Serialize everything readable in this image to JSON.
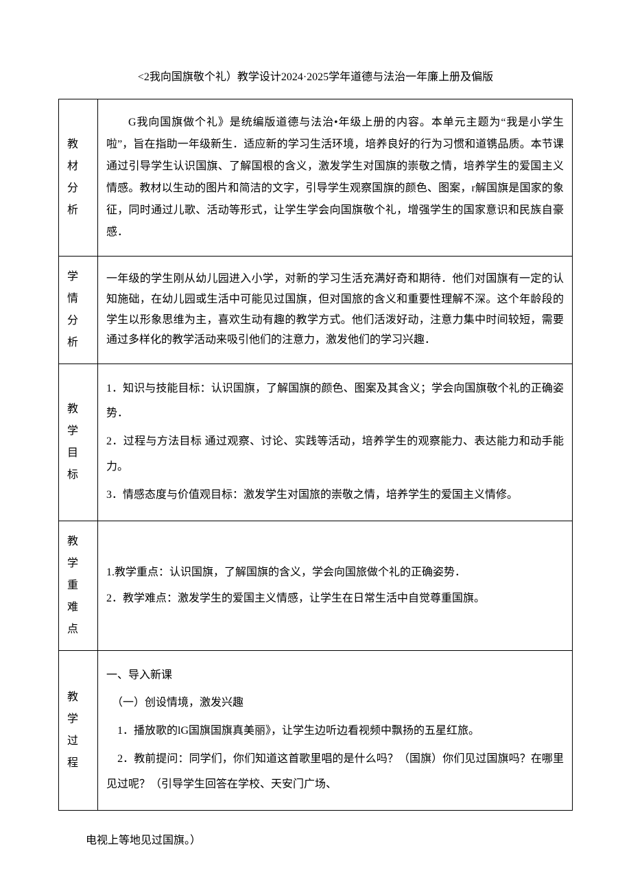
{
  "doc": {
    "title": "<2我向国旗敬个礼）教学设计2024·2025学年道德与法治一年廉上册及偏版"
  },
  "rows": {
    "r1": {
      "label_chars": [
        "教",
        "材",
        "分",
        "析"
      ],
      "content": "G我向国旗做个礼》是统编版道德与法治•年级上册的内容。本单元主题为“我是小学生啦”，旨在指助一年级新生．适应新的学习生活环境，培养良好的行为习惯和道镌品质。本节课通过引导学生认识国旗、了解国根的含义，激发学生对国旗的崇敬之情，培养学生的爱国主义情感。教材以生动的图片和简洁的文字，引导学生观察国旗的颜色、图案，r解国旗是国家的象征，同时通过儿歌、活动等形式，让学生学会向国旗敬个礼，增强学生的国家意识和民族自豪感．"
    },
    "r2": {
      "label_chars": [
        "学",
        "情",
        "分",
        "析"
      ],
      "content": "一年级的学生刚从幼儿园进入小学，对新的学习生活充满好奇和期待．他们对国旗有一定的认知施础，在幼儿园或生活中可能见过国旗，但对国旅的含义和重要性理解不深。这个年龄段的学生以形象思维为主，喜欢生动有趣的教学方式。他们活泼好动，注意力集中时间较短，需要通过多样化的教学活动来吸引他们的注意力，激发他们的学习兴趣．"
    },
    "r3": {
      "label_chars": [
        "教",
        "学",
        "目",
        "标"
      ],
      "p1": "1．知识与技能目标：认识国旗，了解国旗的颜色、图案及其含义；学会向国旗敬个礼的正确姿势．",
      "p2": "2．过程与方法目标 通过观察、讨论、实践等活动，培养学生的观察能力、表达能力和动手能力。",
      "p3": "3．情感态度与价值观目标：激发学生对国旅的崇敬之情，培养学生的爱国主义情修。"
    },
    "r4": {
      "label_chars": [
        "教",
        "学",
        "重",
        "难",
        "点"
      ],
      "p1": "1.教学重点：认识国旗，了解国旗的含义，学会向国旅做个礼的正确姿势．",
      "p2": "2．教学难点：激发学生的爱国主义情感，让学生在日常生活中自觉尊重国旗。"
    },
    "r5": {
      "label_chars": [
        "教",
        "学",
        "过",
        "程"
      ],
      "p1": "一、导入新课",
      "p2": "　（一）创设情境，激发兴趣",
      "p3": "　1．播放歌的lG国旗国旗真美丽》，让学生边听边看视频中飘扬的五星红旅。",
      "p4": "　2．教前提问：同学们，你们知道这首歌里唱的是什么吗？（国旗）你们见过国旗吗？在哪里见过呢？（引导学生回答在学校、天安门广场、"
    }
  },
  "footnote": "电视上等地见过国旗。）"
}
